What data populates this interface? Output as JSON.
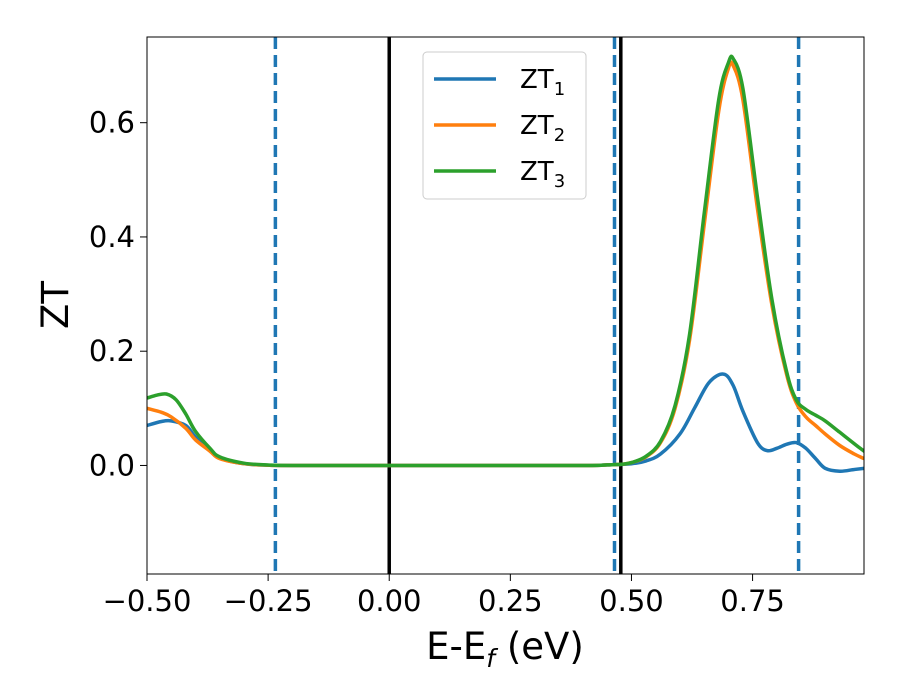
{
  "chart_data": {
    "type": "line",
    "xlabel": "E-E_f (eV)",
    "xlabel_parts": {
      "base": "E-E",
      "sub": "f",
      "rest": " (eV)"
    },
    "ylabel": "ZT",
    "xlim": [
      -0.5,
      0.98
    ],
    "ylim": [
      -0.19,
      0.75
    ],
    "x_ticks": [
      -0.5,
      -0.25,
      0.0,
      0.25,
      0.5,
      0.75
    ],
    "x_tick_labels": [
      "−0.50",
      "−0.25",
      "0.00",
      "0.25",
      "0.50",
      "0.75"
    ],
    "y_ticks": [
      0.0,
      0.2,
      0.4,
      0.6
    ],
    "y_tick_labels": [
      "0.0",
      "0.2",
      "0.4",
      "0.6"
    ],
    "legend_position": "top-center",
    "grid": false,
    "series": [
      {
        "name": "ZT_1",
        "name_base": "ZT",
        "name_sub": "1",
        "color": "#1f77b4",
        "x": [
          -0.5,
          -0.47,
          -0.45,
          -0.42,
          -0.4,
          -0.37,
          -0.35,
          -0.3,
          -0.25,
          -0.2,
          0.0,
          0.2,
          0.4,
          0.45,
          0.5,
          0.53,
          0.56,
          0.6,
          0.63,
          0.66,
          0.69,
          0.71,
          0.73,
          0.76,
          0.78,
          0.8,
          0.82,
          0.84,
          0.86,
          0.88,
          0.9,
          0.93,
          0.96,
          0.98
        ],
        "y": [
          0.07,
          0.077,
          0.078,
          0.07,
          0.05,
          0.028,
          0.013,
          0.003,
          0.0005,
          0.0,
          0.0,
          0.0,
          0.0,
          0.001,
          0.003,
          0.008,
          0.02,
          0.055,
          0.1,
          0.145,
          0.16,
          0.14,
          0.095,
          0.04,
          0.026,
          0.03,
          0.037,
          0.04,
          0.03,
          0.012,
          -0.005,
          -0.01,
          -0.007,
          -0.005
        ]
      },
      {
        "name": "ZT_2",
        "name_base": "ZT",
        "name_sub": "2",
        "color": "#ff7f0e",
        "x": [
          -0.5,
          -0.47,
          -0.45,
          -0.42,
          -0.4,
          -0.37,
          -0.35,
          -0.3,
          -0.25,
          -0.2,
          0.0,
          0.2,
          0.4,
          0.45,
          0.48,
          0.5,
          0.53,
          0.56,
          0.59,
          0.62,
          0.65,
          0.68,
          0.7,
          0.71,
          0.73,
          0.76,
          0.79,
          0.82,
          0.84,
          0.86,
          0.88,
          0.9,
          0.93,
          0.96,
          0.98
        ],
        "y": [
          0.1,
          0.093,
          0.085,
          0.065,
          0.045,
          0.025,
          0.012,
          0.003,
          0.0005,
          0.0,
          0.0,
          0.0,
          0.0,
          0.001,
          0.002,
          0.005,
          0.015,
          0.04,
          0.1,
          0.22,
          0.42,
          0.62,
          0.695,
          0.7,
          0.64,
          0.45,
          0.28,
          0.16,
          0.11,
          0.085,
          0.07,
          0.055,
          0.035,
          0.02,
          0.012
        ]
      },
      {
        "name": "ZT_3",
        "name_base": "ZT",
        "name_sub": "3",
        "color": "#2ca02c",
        "x": [
          -0.5,
          -0.48,
          -0.46,
          -0.44,
          -0.42,
          -0.4,
          -0.37,
          -0.35,
          -0.3,
          -0.25,
          -0.2,
          0.0,
          0.2,
          0.4,
          0.45,
          0.48,
          0.5,
          0.53,
          0.56,
          0.59,
          0.62,
          0.65,
          0.68,
          0.7,
          0.71,
          0.73,
          0.76,
          0.79,
          0.82,
          0.84,
          0.86,
          0.88,
          0.9,
          0.93,
          0.96,
          0.98
        ],
        "y": [
          0.118,
          0.123,
          0.125,
          0.115,
          0.09,
          0.06,
          0.03,
          0.015,
          0.004,
          0.0008,
          0.0,
          0.0,
          0.0,
          0.0,
          0.001,
          0.002,
          0.005,
          0.016,
          0.042,
          0.105,
          0.23,
          0.44,
          0.64,
          0.705,
          0.712,
          0.66,
          0.47,
          0.29,
          0.165,
          0.115,
          0.098,
          0.088,
          0.078,
          0.058,
          0.038,
          0.025
        ]
      }
    ],
    "vertical_lines": [
      {
        "x": -0.235,
        "style": "dashed",
        "color": "#1f77b4"
      },
      {
        "x": 0.0,
        "style": "solid",
        "color": "#000000"
      },
      {
        "x": 0.465,
        "style": "dashed",
        "color": "#1f77b4"
      },
      {
        "x": 0.478,
        "style": "solid",
        "color": "#000000"
      },
      {
        "x": 0.845,
        "style": "dashed",
        "color": "#1f77b4"
      }
    ]
  }
}
